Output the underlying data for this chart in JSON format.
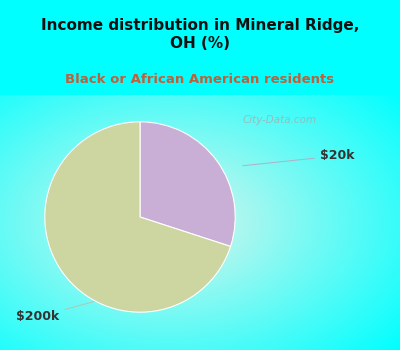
{
  "title": "Income distribution in Mineral Ridge,\nOH (%)",
  "subtitle": "Black or African American residents",
  "slices": [
    {
      "label": "$20k",
      "value": 30,
      "color": "#c9aed6"
    },
    {
      "label": "$200k",
      "value": 70,
      "color": "#cdd5a0"
    }
  ],
  "title_fontsize": 11,
  "subtitle_fontsize": 9.5,
  "title_color": "#111111",
  "subtitle_color": "#c0603a",
  "bg_color": "#00ffff",
  "startangle": 90,
  "annotation_color": "#333333",
  "watermark": "City-Data.com"
}
